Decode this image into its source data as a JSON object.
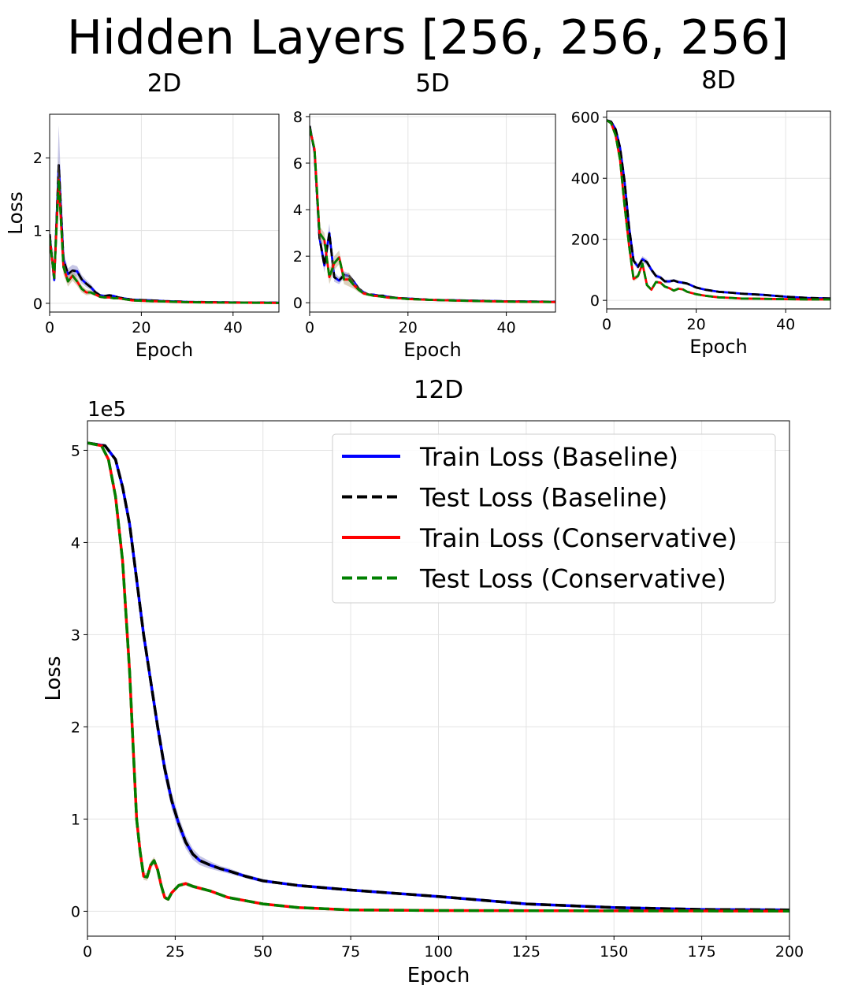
{
  "figure": {
    "suptitle": "Hidden Layers [256, 256, 256]"
  },
  "colors": {
    "train_baseline": "#0000ff",
    "test_baseline": "#000000",
    "train_conservative": "#ff0000",
    "test_conservative": "#008000",
    "band_baseline": "#8080c8",
    "band_conservative": "#b09a6a",
    "grid": "#e3e3e3"
  },
  "legend": {
    "placement": "upper-right",
    "entries": [
      {
        "label": "Train Loss (Baseline)",
        "color_key": "train_baseline",
        "style": "solid"
      },
      {
        "label": "Test Loss (Baseline)",
        "color_key": "test_baseline",
        "style": "dashed"
      },
      {
        "label": "Train Loss (Conservative)",
        "color_key": "train_conservative",
        "style": "solid"
      },
      {
        "label": "Test Loss (Conservative)",
        "color_key": "test_conservative",
        "style": "dashed"
      }
    ]
  },
  "chart_data": [
    {
      "type": "line",
      "title": "2D",
      "xlabel": "Epoch",
      "ylabel": "Loss",
      "xlim": [
        0,
        50
      ],
      "ylim": [
        -0.12,
        2.6
      ],
      "xticks": [
        0,
        20,
        40
      ],
      "yticks": [
        0,
        1,
        2
      ],
      "grid": true,
      "series": [
        {
          "key": "baseline",
          "x": [
            0,
            1,
            2,
            3,
            4,
            5,
            6,
            7,
            8,
            9,
            10,
            11,
            12,
            13,
            14,
            15,
            16,
            18,
            20,
            22,
            25,
            28,
            30,
            35,
            40,
            45,
            50
          ],
          "y": [
            0.95,
            0.32,
            1.9,
            0.6,
            0.4,
            0.45,
            0.44,
            0.33,
            0.27,
            0.22,
            0.15,
            0.11,
            0.1,
            0.11,
            0.1,
            0.08,
            0.07,
            0.05,
            0.045,
            0.04,
            0.03,
            0.025,
            0.02,
            0.015,
            0.012,
            0.01,
            0.008
          ],
          "band": [
            0.02,
            0.04,
            0.55,
            0.12,
            0.08,
            0.08,
            0.07,
            0.06,
            0.05,
            0.04,
            0.03,
            0.02,
            0.02,
            0.02,
            0.02,
            0.015,
            0.01,
            0.01,
            0.008,
            0.006,
            0.005,
            0.004,
            0.004,
            0.003,
            0.003,
            0.002,
            0.002
          ]
        },
        {
          "key": "conservative",
          "x": [
            0,
            1,
            2,
            3,
            4,
            5,
            6,
            7,
            8,
            9,
            10,
            11,
            12,
            13,
            14,
            15,
            16,
            18,
            20,
            22,
            25,
            28,
            30,
            35,
            40,
            45,
            50
          ],
          "y": [
            0.9,
            0.35,
            1.7,
            0.5,
            0.3,
            0.38,
            0.3,
            0.2,
            0.15,
            0.15,
            0.12,
            0.09,
            0.08,
            0.08,
            0.07,
            0.07,
            0.06,
            0.04,
            0.035,
            0.03,
            0.025,
            0.02,
            0.015,
            0.012,
            0.01,
            0.008,
            0.006
          ],
          "band": [
            0.02,
            0.04,
            0.3,
            0.1,
            0.07,
            0.07,
            0.06,
            0.05,
            0.04,
            0.03,
            0.02,
            0.02,
            0.02,
            0.015,
            0.015,
            0.01,
            0.01,
            0.008,
            0.006,
            0.005,
            0.004,
            0.004,
            0.003,
            0.003,
            0.002,
            0.002,
            0.002
          ]
        }
      ]
    },
    {
      "type": "line",
      "title": "5D",
      "xlabel": "Epoch",
      "ylabel": "",
      "xlim": [
        0,
        50
      ],
      "ylim": [
        -0.4,
        8.1
      ],
      "xticks": [
        0,
        20,
        40
      ],
      "yticks": [
        0,
        2,
        4,
        6,
        8
      ],
      "grid": true,
      "series": [
        {
          "key": "baseline",
          "x": [
            0,
            1,
            2,
            3,
            4,
            5,
            6,
            7,
            8,
            9,
            10,
            11,
            12,
            13,
            14,
            15,
            16,
            18,
            20,
            25,
            30,
            35,
            40,
            45,
            50
          ],
          "y": [
            7.6,
            6.5,
            2.8,
            1.6,
            3.0,
            1.1,
            0.95,
            1.2,
            1.15,
            0.9,
            0.6,
            0.45,
            0.35,
            0.35,
            0.3,
            0.3,
            0.25,
            0.2,
            0.18,
            0.12,
            0.1,
            0.08,
            0.06,
            0.05,
            0.04
          ],
          "band": [
            0.1,
            0.2,
            0.3,
            0.3,
            0.4,
            0.2,
            0.15,
            0.15,
            0.12,
            0.1,
            0.08,
            0.06,
            0.05,
            0.05,
            0.04,
            0.04,
            0.03,
            0.03,
            0.02,
            0.02,
            0.02,
            0.015,
            0.01,
            0.01,
            0.01
          ]
        },
        {
          "key": "conservative",
          "x": [
            0,
            1,
            2,
            3,
            4,
            5,
            6,
            7,
            8,
            9,
            10,
            11,
            12,
            13,
            14,
            15,
            16,
            18,
            20,
            25,
            30,
            35,
            40,
            45,
            50
          ],
          "y": [
            7.5,
            6.6,
            3.0,
            2.7,
            1.1,
            1.7,
            1.95,
            1.0,
            1.0,
            0.75,
            0.55,
            0.4,
            0.35,
            0.3,
            0.28,
            0.25,
            0.22,
            0.2,
            0.16,
            0.12,
            0.09,
            0.07,
            0.05,
            0.04,
            0.03
          ],
          "band": [
            0.1,
            0.2,
            0.3,
            0.3,
            0.3,
            0.3,
            0.3,
            0.2,
            0.3,
            0.15,
            0.1,
            0.08,
            0.06,
            0.05,
            0.05,
            0.04,
            0.04,
            0.03,
            0.03,
            0.02,
            0.02,
            0.015,
            0.01,
            0.01,
            0.01
          ]
        }
      ]
    },
    {
      "type": "line",
      "title": "8D",
      "xlabel": "Epoch",
      "ylabel": "",
      "xlim": [
        0,
        50
      ],
      "ylim": [
        -28,
        620
      ],
      "xticks": [
        0,
        20,
        40
      ],
      "yticks": [
        0,
        200,
        400,
        600
      ],
      "grid": true,
      "series": [
        {
          "key": "baseline",
          "x": [
            0,
            1,
            2,
            3,
            4,
            5,
            6,
            7,
            8,
            9,
            10,
            11,
            12,
            13,
            14,
            15,
            16,
            17,
            18,
            20,
            22,
            25,
            28,
            30,
            35,
            40,
            45,
            50
          ],
          "y": [
            590,
            585,
            560,
            500,
            390,
            240,
            130,
            110,
            135,
            125,
            100,
            80,
            75,
            62,
            62,
            65,
            60,
            58,
            55,
            42,
            35,
            28,
            25,
            22,
            18,
            12,
            8,
            6
          ],
          "band": [
            3,
            5,
            8,
            12,
            15,
            15,
            10,
            10,
            10,
            10,
            8,
            8,
            6,
            6,
            6,
            5,
            5,
            5,
            4,
            4,
            3,
            3,
            2,
            2,
            2,
            2,
            1,
            1
          ]
        },
        {
          "key": "conservative",
          "x": [
            0,
            1,
            2,
            3,
            4,
            5,
            6,
            7,
            8,
            9,
            10,
            11,
            12,
            13,
            14,
            15,
            16,
            17,
            18,
            20,
            22,
            25,
            28,
            30,
            35,
            40,
            45,
            50
          ],
          "y": [
            590,
            580,
            540,
            460,
            310,
            180,
            70,
            80,
            120,
            50,
            35,
            60,
            58,
            45,
            40,
            32,
            38,
            36,
            28,
            20,
            15,
            10,
            8,
            6,
            5,
            4,
            3,
            3
          ],
          "band": [
            3,
            5,
            8,
            12,
            15,
            12,
            8,
            8,
            10,
            6,
            5,
            5,
            5,
            4,
            4,
            4,
            3,
            3,
            3,
            2,
            2,
            2,
            1,
            1,
            1,
            1,
            1,
            1
          ]
        }
      ]
    },
    {
      "type": "line",
      "title": "12D",
      "xlabel": "Epoch",
      "ylabel": "Loss",
      "y_scale_label": "1e5",
      "xlim": [
        0,
        200
      ],
      "ylim": [
        -0.27,
        5.32
      ],
      "xticks": [
        0,
        25,
        50,
        75,
        100,
        125,
        150,
        175,
        200
      ],
      "yticks": [
        0,
        1,
        2,
        3,
        4,
        5
      ],
      "grid": true,
      "series": [
        {
          "key": "baseline",
          "x": [
            0,
            5,
            8,
            10,
            12,
            14,
            16,
            18,
            20,
            22,
            24,
            26,
            28,
            30,
            32,
            35,
            38,
            40,
            45,
            50,
            60,
            75,
            100,
            125,
            150,
            175,
            200
          ],
          "y": [
            5.08,
            5.05,
            4.9,
            4.6,
            4.2,
            3.6,
            3.0,
            2.5,
            2.0,
            1.55,
            1.2,
            0.95,
            0.75,
            0.62,
            0.55,
            0.5,
            0.46,
            0.44,
            0.38,
            0.33,
            0.28,
            0.23,
            0.16,
            0.08,
            0.04,
            0.02,
            0.015
          ],
          "band": [
            0.01,
            0.01,
            0.02,
            0.04,
            0.05,
            0.07,
            0.08,
            0.09,
            0.1,
            0.1,
            0.09,
            0.08,
            0.07,
            0.06,
            0.05,
            0.04,
            0.03,
            0.03,
            0.02,
            0.02,
            0.01,
            0.01,
            0.01,
            0.005,
            0.005,
            0.003,
            0.003
          ]
        },
        {
          "key": "conservative",
          "x": [
            0,
            4,
            6,
            8,
            10,
            12,
            13,
            14,
            15,
            16,
            17,
            18,
            19,
            20,
            21,
            22,
            23,
            24,
            26,
            28,
            30,
            35,
            40,
            50,
            60,
            75,
            100,
            150,
            200
          ],
          "y": [
            5.08,
            5.05,
            4.9,
            4.5,
            3.8,
            2.6,
            1.8,
            1.0,
            0.65,
            0.38,
            0.37,
            0.5,
            0.55,
            0.45,
            0.28,
            0.15,
            0.13,
            0.2,
            0.28,
            0.3,
            0.27,
            0.22,
            0.15,
            0.08,
            0.04,
            0.015,
            0.008,
            0.004,
            0.002
          ],
          "band": [
            0.01,
            0.01,
            0.02,
            0.04,
            0.05,
            0.06,
            0.06,
            0.06,
            0.05,
            0.04,
            0.04,
            0.04,
            0.04,
            0.03,
            0.03,
            0.02,
            0.02,
            0.02,
            0.02,
            0.02,
            0.02,
            0.015,
            0.01,
            0.01,
            0.005,
            0.004,
            0.003,
            0.002,
            0.001
          ]
        }
      ]
    }
  ]
}
